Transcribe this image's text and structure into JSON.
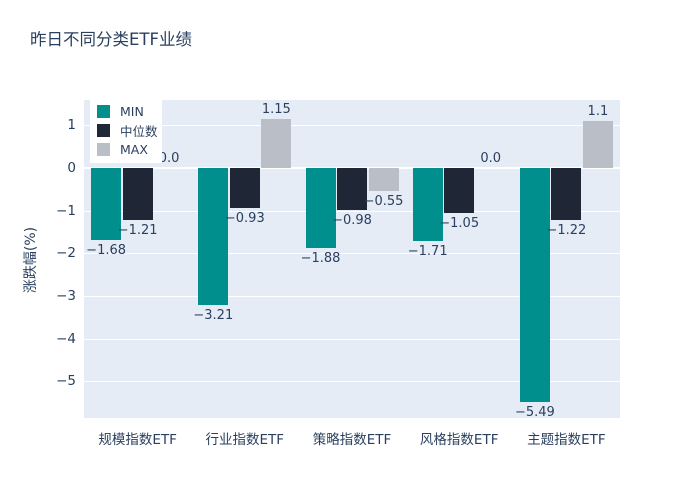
{
  "title": "昨日不同分类ETF业绩",
  "colors": {
    "min": "#008f8c",
    "median": "#1f2636",
    "max": "#babfc7",
    "plot_bg": "#e5ecf6",
    "grid": "#ffffff",
    "text": "#2a3f5f"
  },
  "chart_data": {
    "type": "bar",
    "title": "昨日不同分类ETF业绩",
    "categories": [
      "规模指数ETF",
      "行业指数ETF",
      "策略指数ETF",
      "风格指数ETF",
      "主题指数ETF"
    ],
    "series": [
      {
        "name": "MIN",
        "color_key": "min",
        "values": [
          -1.68,
          -3.21,
          -1.88,
          -1.71,
          -5.49
        ],
        "labels": [
          "−1.68",
          "−3.21",
          "−1.88",
          "−1.71",
          "−5.49"
        ]
      },
      {
        "name": "中位数",
        "color_key": "median",
        "values": [
          -1.21,
          -0.93,
          -0.98,
          -1.05,
          -1.22
        ],
        "labels": [
          "−1.21",
          "−0.93",
          "−0.98",
          "−1.05",
          "−1.22"
        ]
      },
      {
        "name": "MAX",
        "color_key": "max",
        "values": [
          0.0,
          1.15,
          -0.55,
          0.0,
          1.1
        ],
        "labels": [
          "0.0",
          "1.15",
          "−0.55",
          "0.0",
          "1.1"
        ]
      }
    ],
    "xlabel": "",
    "ylabel": "涨跌幅(%)",
    "yticks": [
      1,
      0,
      -1,
      -2,
      -3,
      -4,
      -5
    ],
    "ytick_labels": [
      "1",
      "0",
      "−1",
      "−2",
      "−3",
      "−4",
      "−5"
    ],
    "ylim": [
      -5.86,
      1.59
    ],
    "grid": true,
    "legend_position": "inside-top-left"
  }
}
